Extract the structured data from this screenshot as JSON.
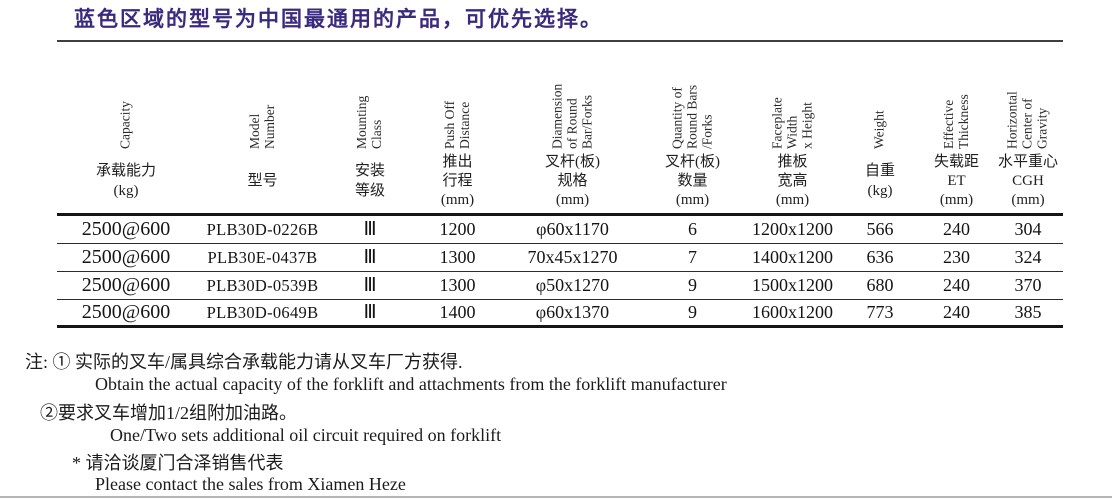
{
  "title": "蓝色区域的型号为中国最通用的产品，可优先选择。",
  "colors": {
    "title_accent": "#3a2a7e",
    "table_line": "#161616"
  },
  "table": {
    "columns": [
      {
        "en": "Capacity",
        "zh": "承载能力\n(kg)"
      },
      {
        "en": "Model\nNumber",
        "zh": "型号"
      },
      {
        "en": "Mounting\nClass",
        "zh": "安装\n等级"
      },
      {
        "en": "Push Off\nDistance",
        "zh": "推出\n行程\n(mm)"
      },
      {
        "en": "Diamension\nof Round\nBar/Forks",
        "zh": "叉杆(板)\n规格\n(mm)"
      },
      {
        "en": "Quantity of\nRound Bars\n/Forks",
        "zh": "叉杆(板)\n数量\n(mm)"
      },
      {
        "en": "Faceplate\nWidth\nx Height",
        "zh": "推板\n宽高\n(mm)"
      },
      {
        "en": "Weight",
        "zh": "自重\n(kg)"
      },
      {
        "en": "Effective\nThickness",
        "zh": "失载距\nET\n(mm)"
      },
      {
        "en": "Horizontal\nCenter of\nGravity",
        "zh": "水平重心\nCGH\n(mm)"
      }
    ],
    "rows": [
      [
        "2500@600",
        "PLB30D-0226B",
        "Ⅲ",
        "1200",
        "φ60x1170",
        "6",
        "1200x1200",
        "566",
        "240",
        "304"
      ],
      [
        "2500@600",
        "PLB30E-0437B",
        "Ⅲ",
        "1300",
        "70x45x1270",
        "7",
        "1400x1200",
        "636",
        "230",
        "324"
      ],
      [
        "2500@600",
        "PLB30D-0539B",
        "Ⅲ",
        "1300",
        "φ50x1270",
        "9",
        "1500x1200",
        "680",
        "240",
        "370"
      ],
      [
        "2500@600",
        "PLB30D-0649B",
        "Ⅲ",
        "1400",
        "φ60x1370",
        "9",
        "1600x1200",
        "773",
        "240",
        "385"
      ]
    ]
  },
  "notes": [
    "注: ① 实际的叉车/属具综合承载能力请从叉车厂方获得.",
    "Obtain the actual capacity of the forklift and attachments from the forklift manufacturer",
    "②要求叉车增加1/2组附加油路。",
    "One/Two sets additional oil circuit required on forklift",
    "* 请洽谈厦门合泽销售代表",
    "Please contact the sales from Xiamen Heze"
  ]
}
